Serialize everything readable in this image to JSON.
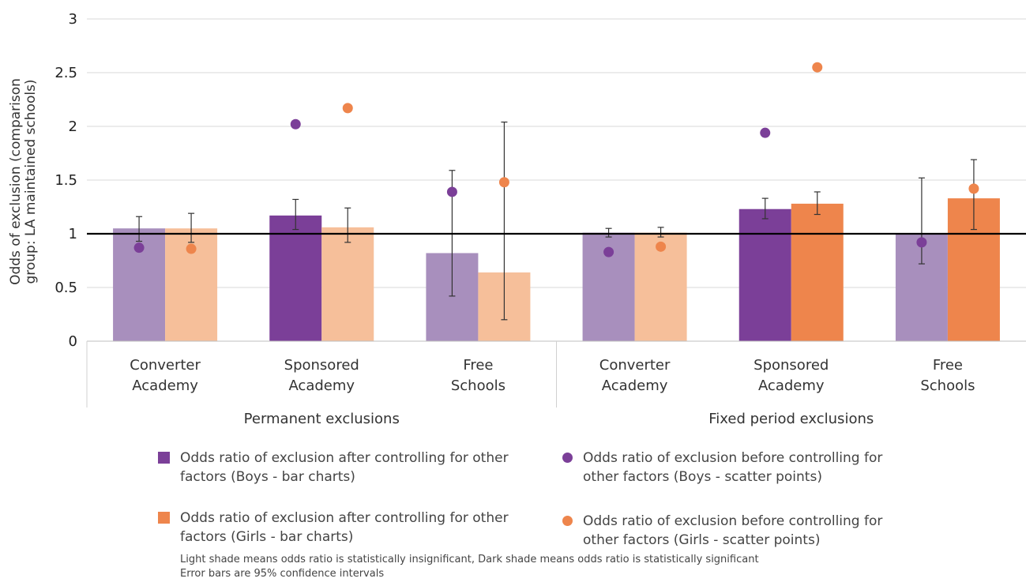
{
  "chart_data": {
    "type": "bar",
    "ylabel_line1": "Odds of exclusion (comparison",
    "ylabel_line2": "group: LA maintained schools)",
    "ylim": [
      0,
      3
    ],
    "yticks": [
      "0",
      "0.5",
      "1",
      "1.5",
      "2",
      "2.5",
      "3"
    ],
    "reference_line": 1,
    "groups": [
      {
        "label": "Permanent exclusions",
        "categories": [
          {
            "line1": "Converter",
            "line2": "Academy",
            "boys_bar": 1.05,
            "boys_err": [
              0.93,
              1.16
            ],
            "boys_significant": false,
            "boys_point": 0.87,
            "girls_bar": 1.05,
            "girls_err": [
              0.92,
              1.19
            ],
            "girls_significant": false,
            "girls_point": 0.86
          },
          {
            "line1": "Sponsored",
            "line2": "Academy",
            "boys_bar": 1.17,
            "boys_err": [
              1.04,
              1.32
            ],
            "boys_significant": true,
            "boys_point": 2.02,
            "girls_bar": 1.06,
            "girls_err": [
              0.92,
              1.24
            ],
            "girls_significant": false,
            "girls_point": 2.17
          },
          {
            "line1": "Free",
            "line2": "Schools",
            "boys_bar": 0.82,
            "boys_err": [
              0.42,
              1.59
            ],
            "boys_significant": false,
            "boys_point": 1.39,
            "girls_bar": 0.64,
            "girls_err": [
              0.2,
              2.04
            ],
            "girls_significant": false,
            "girls_point": 1.48
          }
        ]
      },
      {
        "label": "Fixed period exclusions",
        "categories": [
          {
            "line1": "Converter",
            "line2": "Academy",
            "boys_bar": 1.01,
            "boys_err": [
              0.97,
              1.05
            ],
            "boys_significant": false,
            "boys_point": 0.83,
            "girls_bar": 1.01,
            "girls_err": [
              0.97,
              1.06
            ],
            "girls_significant": false,
            "girls_point": 0.88
          },
          {
            "line1": "Sponsored",
            "line2": "Academy",
            "boys_bar": 1.23,
            "boys_err": [
              1.14,
              1.33
            ],
            "boys_significant": true,
            "boys_point": 1.94,
            "girls_bar": 1.28,
            "girls_err": [
              1.18,
              1.39
            ],
            "girls_significant": true,
            "girls_point": 2.55
          },
          {
            "line1": "Free",
            "line2": "Schools",
            "boys_bar": 1.0,
            "boys_err": [
              0.72,
              1.52
            ],
            "boys_significant": false,
            "boys_point": 0.92,
            "girls_bar": 1.33,
            "girls_err": [
              1.04,
              1.69
            ],
            "girls_significant": true,
            "girls_point": 1.42
          }
        ]
      }
    ],
    "colors": {
      "boys_dark": "#7b3f98",
      "boys_light": "#a88fbd",
      "girls_dark": "#ee854c",
      "girls_light": "#f6bf9a",
      "boys_point": "#7b3f98",
      "girls_point": "#ee854c"
    },
    "legend": {
      "boys_bar": "Odds ratio of exclusion after controlling for other factors (Boys - bar charts)",
      "boys_point": "Odds ratio of exclusion before controlling for other factors (Boys - scatter points)",
      "girls_bar": "Odds ratio of exclusion after controlling for other factors (Girls - bar charts)",
      "girls_point": "Odds ratio of exclusion before controlling for other factors (Girls - scatter points)"
    },
    "notes": [
      "Light shade means odds ratio is statistically insignificant, Dark shade means odds ratio is statistically significant",
      "Error bars are 95% confidence intervals"
    ]
  }
}
